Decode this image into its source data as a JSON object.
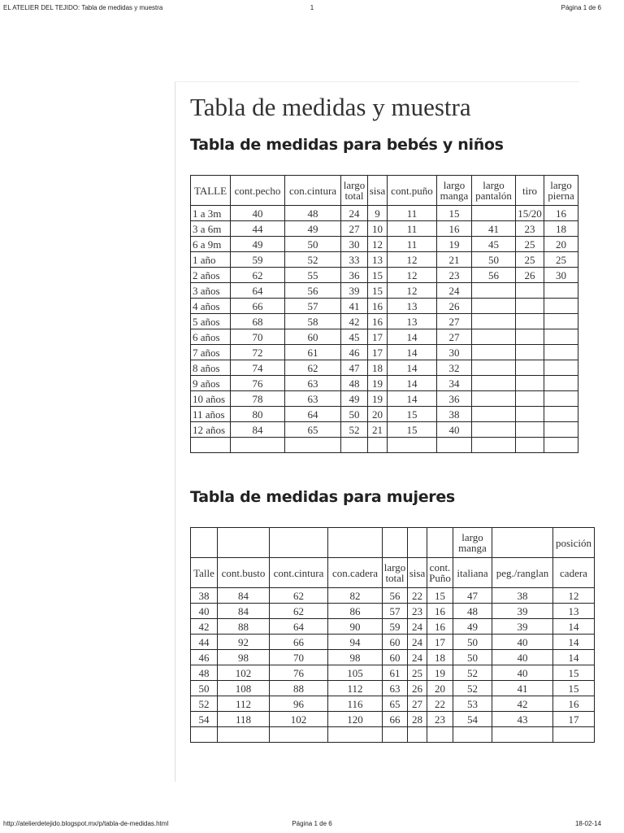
{
  "header": {
    "left": "EL ATELIER DEL TEJIDO: Tabla de medidas y muestra",
    "center": "1",
    "right": "Página 1 de 6"
  },
  "title": "Tabla de medidas y muestra",
  "section1": {
    "heading": "Tabla de medidas para bebés y niños",
    "table": {
      "columns": [
        "TALLE",
        "cont.pecho",
        "con.cintura",
        "largo total",
        "sisa",
        "cont.puño",
        "largo manga",
        "largo pantalón",
        "tiro",
        "largo pierna"
      ],
      "rows": [
        [
          "1 a 3m",
          40,
          48,
          24,
          9,
          11,
          15,
          null,
          "15/20",
          16
        ],
        [
          "3 a 6m",
          44,
          49,
          27,
          10,
          11,
          16,
          41,
          23,
          18
        ],
        [
          "6 a 9m",
          49,
          50,
          30,
          12,
          11,
          19,
          45,
          25,
          20
        ],
        [
          "1 año",
          59,
          52,
          33,
          13,
          12,
          21,
          50,
          25,
          25
        ],
        [
          "2 años",
          62,
          55,
          36,
          15,
          12,
          23,
          56,
          26,
          30
        ],
        [
          "3 años",
          64,
          56,
          39,
          15,
          12,
          24
        ],
        [
          "4 años",
          66,
          57,
          41,
          16,
          13,
          26
        ],
        [
          "5 años",
          68,
          58,
          42,
          16,
          13,
          27
        ],
        [
          "6 años",
          70,
          60,
          45,
          17,
          14,
          27
        ],
        [
          "7 años",
          72,
          61,
          46,
          17,
          14,
          30
        ],
        [
          "8 años",
          74,
          62,
          47,
          18,
          14,
          32
        ],
        [
          "9 años",
          76,
          63,
          48,
          19,
          14,
          34
        ],
        [
          "10 años",
          78,
          63,
          49,
          19,
          14,
          36
        ],
        [
          "11 años",
          80,
          64,
          50,
          20,
          15,
          38
        ],
        [
          "12 años",
          84,
          65,
          52,
          21,
          15,
          40
        ]
      ]
    }
  },
  "section2": {
    "heading": "Tabla de medidas para mujeres",
    "table": {
      "group_header": [
        null,
        null,
        null,
        null,
        null,
        null,
        null,
        "largo manga",
        null,
        "posición"
      ],
      "columns": [
        "Talle",
        "cont.busto",
        "cont.cintura",
        "con.cadera",
        "largo total",
        "sisa",
        "cont. Puño",
        "italiana",
        "peg./ranglan",
        "cadera"
      ],
      "rows": [
        [
          38,
          84,
          62,
          82,
          56,
          22,
          15,
          47,
          38,
          12
        ],
        [
          40,
          84,
          62,
          86,
          57,
          23,
          16,
          48,
          39,
          13
        ],
        [
          42,
          88,
          64,
          90,
          59,
          24,
          16,
          49,
          39,
          14
        ],
        [
          44,
          92,
          66,
          94,
          60,
          24,
          17,
          50,
          40,
          14
        ],
        [
          46,
          98,
          70,
          98,
          60,
          24,
          18,
          50,
          40,
          14
        ],
        [
          48,
          102,
          76,
          105,
          61,
          25,
          19,
          52,
          40,
          15
        ],
        [
          50,
          108,
          88,
          112,
          63,
          26,
          20,
          52,
          41,
          15
        ],
        [
          52,
          112,
          96,
          116,
          65,
          27,
          22,
          53,
          42,
          16
        ],
        [
          54,
          118,
          102,
          120,
          66,
          28,
          23,
          54,
          43,
          17
        ]
      ]
    }
  },
  "footer": {
    "left": "http://atelierdetejido.blogspot.mx/p/tabla-de-medidas.html",
    "center": "Página 1 de 6",
    "right": "18-02-14"
  }
}
